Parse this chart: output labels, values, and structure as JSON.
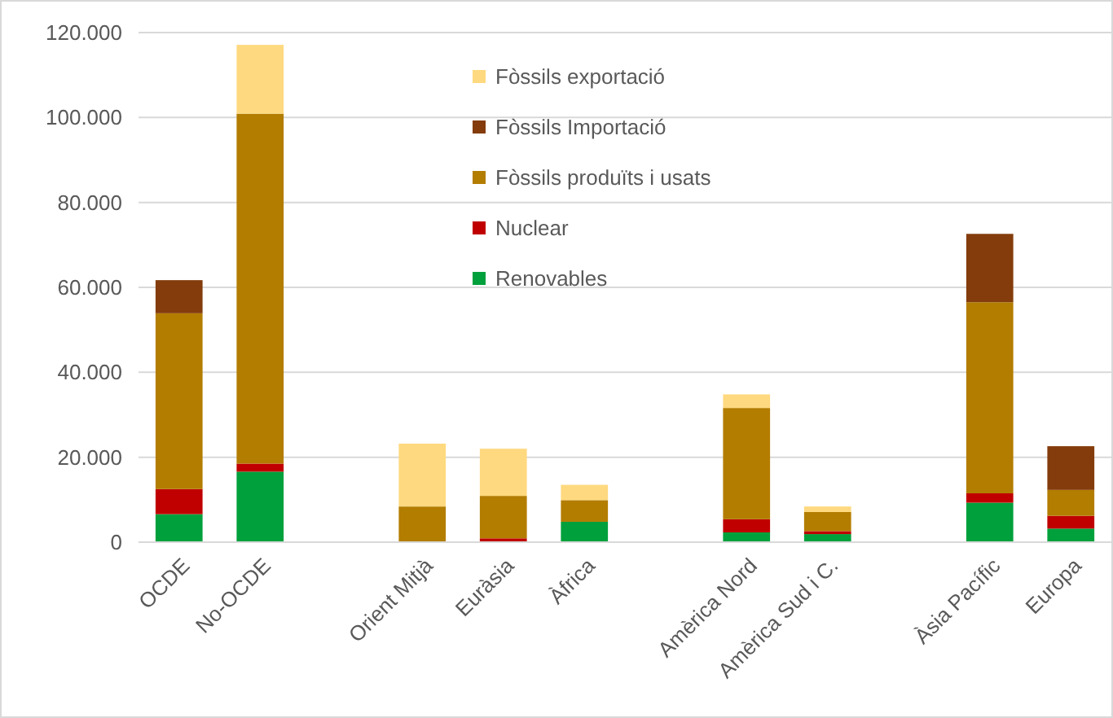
{
  "chart_data": {
    "type": "bar",
    "stacked": true,
    "categories": [
      "OCDE",
      "No-OCDE",
      null,
      "Orient Mitjà",
      "Euràsia",
      "Àfrica",
      null,
      "Amèrica Nord",
      "Amèrica Sud i C.",
      null,
      "Àsia Pacífic",
      "Europa"
    ],
    "series": [
      {
        "name": "Renovables",
        "color": "#00a03c",
        "values": [
          6600,
          16600,
          null,
          null,
          null,
          4800,
          null,
          2300,
          1900,
          null,
          9300,
          3200
        ]
      },
      {
        "name": "Nuclear",
        "color": "#c00000",
        "values": [
          5900,
          1900,
          null,
          null,
          900,
          null,
          null,
          3100,
          700,
          null,
          2200,
          3000
        ]
      },
      {
        "name": "Fòssils produïts i usats",
        "color": "#b37d00",
        "values": [
          41400,
          82400,
          null,
          8400,
          10000,
          5100,
          null,
          26200,
          4500,
          null,
          45000,
          6100
        ]
      },
      {
        "name": "Fòssils Importació",
        "color": "#843c0c",
        "values": [
          7800,
          null,
          null,
          null,
          null,
          null,
          null,
          null,
          null,
          null,
          16100,
          10300
        ]
      },
      {
        "name": "Fòssils exportació",
        "color": "#ffd97f",
        "values": [
          null,
          16200,
          null,
          14800,
          11100,
          3600,
          null,
          3200,
          1300,
          null,
          null,
          null
        ]
      }
    ],
    "ylim": [
      0,
      120000
    ],
    "yticks": [
      {
        "value": 0,
        "label": "0"
      },
      {
        "value": 20000,
        "label": "20.000"
      },
      {
        "value": 40000,
        "label": "40.000"
      },
      {
        "value": 60000,
        "label": "60.000"
      },
      {
        "value": 80000,
        "label": "80.000"
      },
      {
        "value": 100000,
        "label": "100.000"
      },
      {
        "value": 120000,
        "label": "120.000"
      }
    ],
    "grid": "y",
    "legend": "top"
  }
}
